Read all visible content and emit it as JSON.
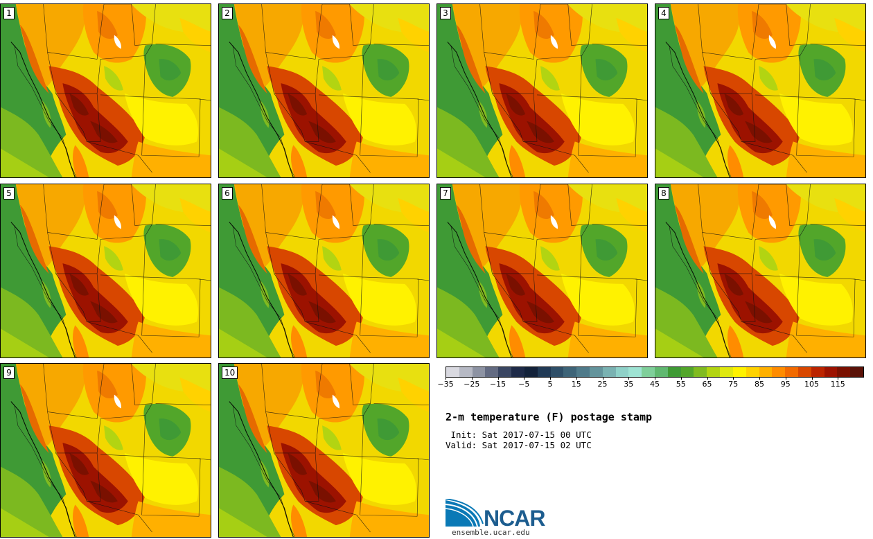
{
  "panels": [
    {
      "label": "1"
    },
    {
      "label": "2"
    },
    {
      "label": "3"
    },
    {
      "label": "4"
    },
    {
      "label": "5"
    },
    {
      "label": "6"
    },
    {
      "label": "7"
    },
    {
      "label": "8"
    },
    {
      "label": "9"
    },
    {
      "label": "10"
    }
  ],
  "colorbar": {
    "colors": [
      "#d9d9e0",
      "#b6b9c4",
      "#8d93a3",
      "#636b82",
      "#3a4662",
      "#1e2a48",
      "#13223a",
      "#213a55",
      "#2f4f68",
      "#3e6478",
      "#4f7a8a",
      "#64949c",
      "#7ab2b2",
      "#8fd1c8",
      "#9ee3d3",
      "#7fcf9a",
      "#60b870",
      "#3f9a35",
      "#52a62a",
      "#80bb20",
      "#b2d412",
      "#dfe810",
      "#fff200",
      "#ffd200",
      "#ffb000",
      "#ff8c00",
      "#f26a00",
      "#d84700",
      "#bb2400",
      "#9c1200",
      "#7a1000",
      "#5a1208"
    ],
    "ticks": [
      "-35",
      "-25",
      "-15",
      "-5",
      "5",
      "15",
      "25",
      "35",
      "45",
      "55",
      "65",
      "75",
      "85",
      "95",
      "105",
      "115"
    ]
  },
  "title": "2-m temperature (F) postage stamp",
  "init": " Init: Sat 2017-07-15 00 UTC",
  "valid": "Valid: Sat 2017-07-15 02 UTC",
  "logo": {
    "name": "NCAR",
    "url": "ensemble.ucar.edu"
  }
}
